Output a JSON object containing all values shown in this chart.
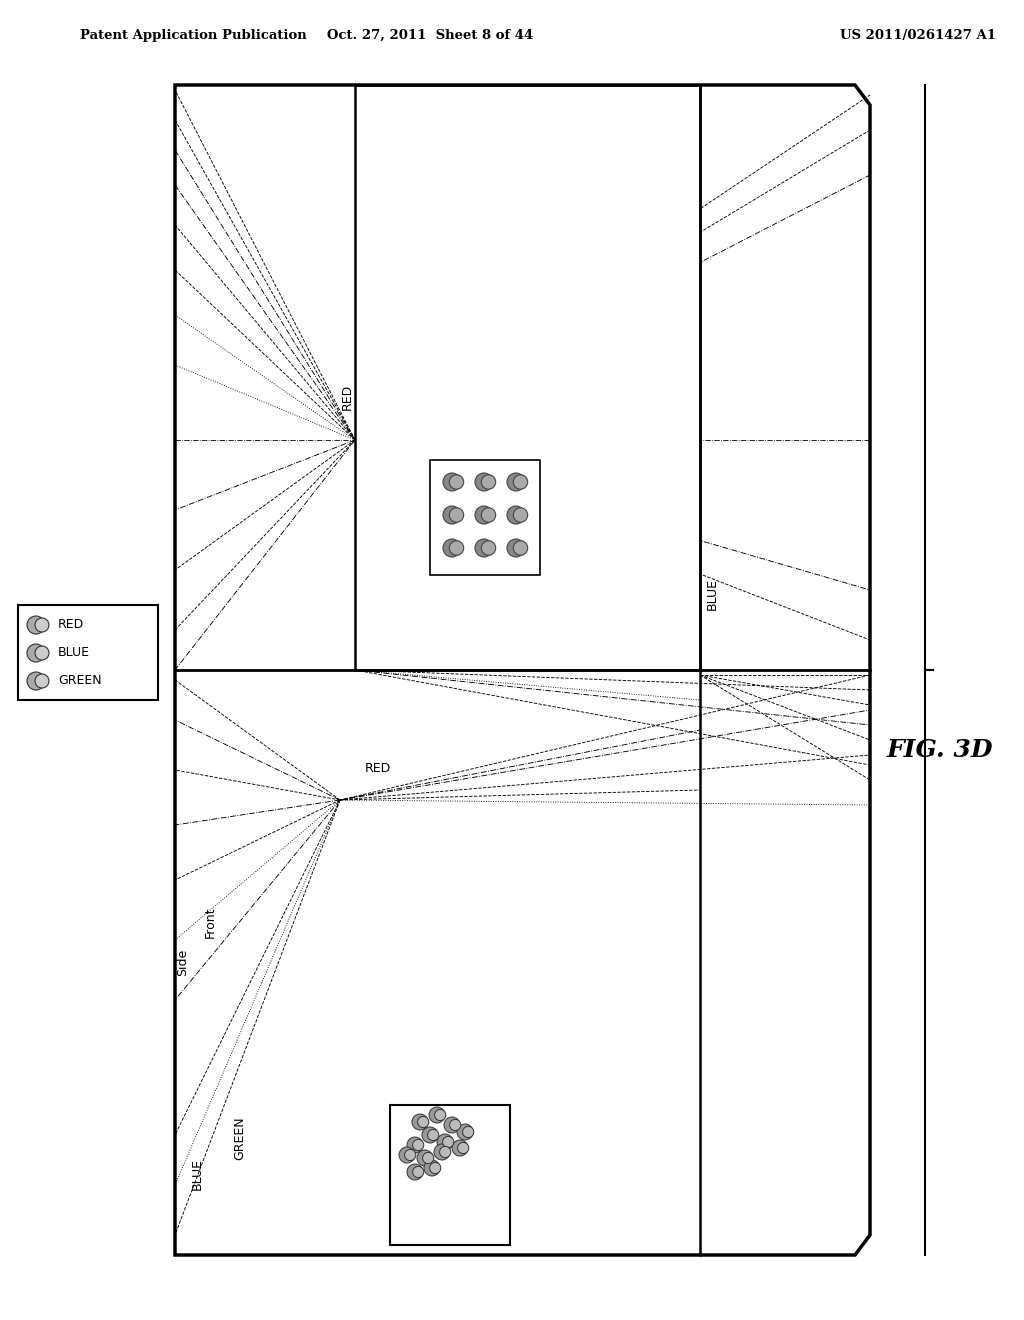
{
  "header_left": "Patent Application Publication",
  "header_mid": "Oct. 27, 2011  Sheet 8 of 44",
  "header_right": "US 2011/0261427 A1",
  "bg_color": "#ffffff",
  "fig_label": "FIG. 3D"
}
